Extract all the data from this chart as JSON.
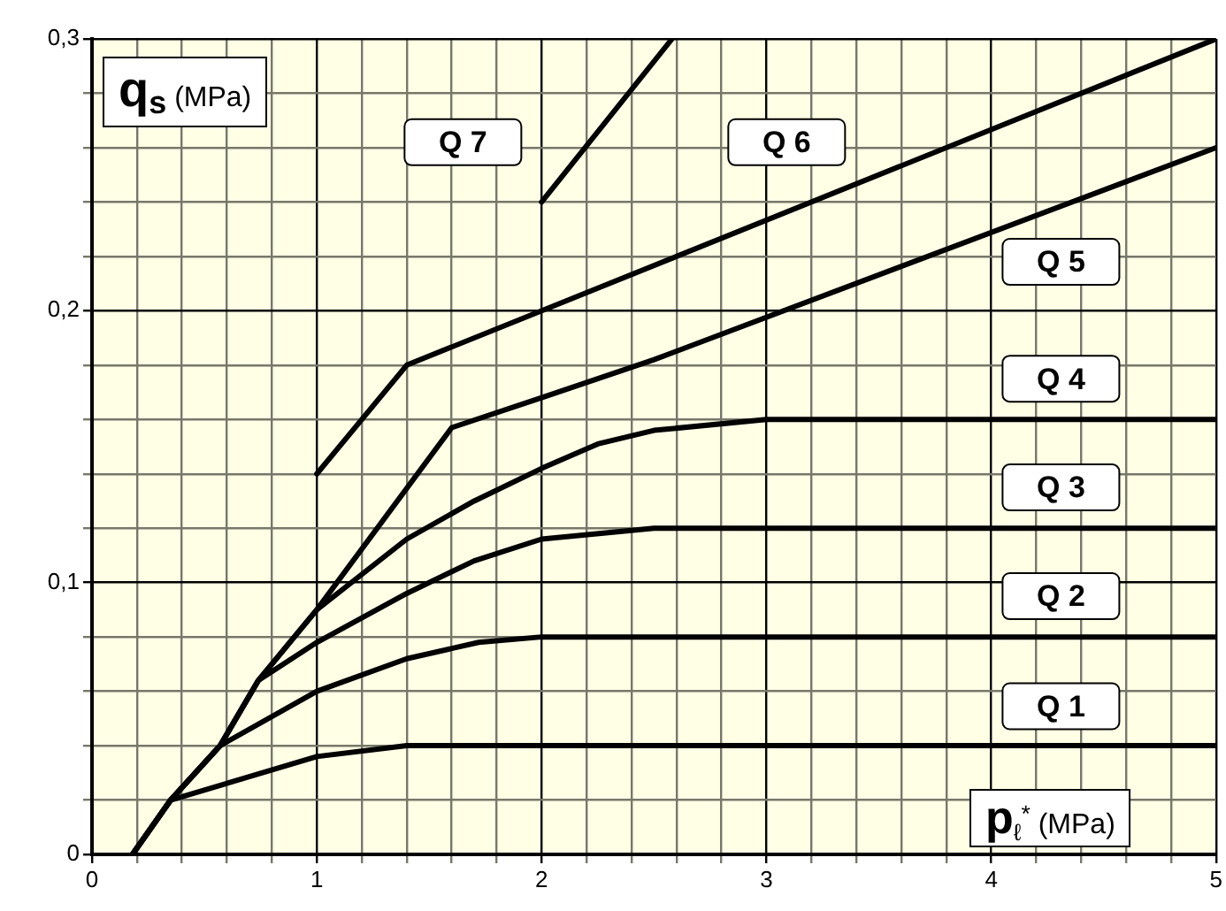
{
  "chart_data": {
    "type": "line",
    "xlabel": "p$_{ℓ}$$^{*}$ (MPa)",
    "ylabel": "q$_{s}$ (MPa)",
    "xlim": [
      0,
      5
    ],
    "ylim": [
      0,
      0.3
    ],
    "xticks": [
      0,
      {
        "value": 0.2,
        "label": null
      },
      {
        "value": 0.4,
        "label": null
      },
      {
        "value": 0.6,
        "label": null
      },
      {
        "value": 0.8,
        "label": null
      },
      1,
      {
        "value": 1.2,
        "label": null
      },
      {
        "value": 1.4,
        "label": null
      },
      {
        "value": 1.6,
        "label": null
      },
      {
        "value": 1.8,
        "label": null
      },
      2,
      {
        "value": 2.2,
        "label": null
      },
      {
        "value": 2.4,
        "label": null
      },
      {
        "value": 2.6,
        "label": null
      },
      {
        "value": 2.8,
        "label": null
      },
      3,
      {
        "value": 3.2,
        "label": null
      },
      {
        "value": 3.4,
        "label": null
      },
      {
        "value": 3.6,
        "label": null
      },
      {
        "value": 3.8,
        "label": null
      },
      4,
      {
        "value": 4.2,
        "label": null
      },
      {
        "value": 4.4,
        "label": null
      },
      {
        "value": 4.6,
        "label": null
      },
      {
        "value": 4.8,
        "label": null
      },
      5
    ],
    "yticks": [
      0,
      {
        "value": 0.02,
        "label": null
      },
      {
        "value": 0.04,
        "label": null
      },
      {
        "value": 0.06,
        "label": null
      },
      {
        "value": 0.08,
        "label": null
      },
      {
        "value": 0.1,
        "label": "0,1"
      },
      {
        "value": 0.12,
        "label": null
      },
      {
        "value": 0.14,
        "label": null
      },
      {
        "value": 0.16,
        "label": null
      },
      {
        "value": 0.18,
        "label": null
      },
      {
        "value": 0.2,
        "label": "0,2"
      },
      {
        "value": 0.22,
        "label": null
      },
      {
        "value": 0.24,
        "label": null
      },
      {
        "value": 0.26,
        "label": null
      },
      {
        "value": 0.28,
        "label": null
      },
      {
        "value": 0.3,
        "label": "0,3"
      }
    ],
    "grid": true,
    "legend": false,
    "marker": "none",
    "line_style": "solid",
    "series": [
      {
        "name": "Q 1",
        "color": "#000000",
        "x": [
          0.18,
          0.35,
          1.0,
          1.4,
          5
        ],
        "values": [
          0,
          0.02,
          0.036,
          0.04,
          0.04
        ]
      },
      {
        "name": "Q 2",
        "color": "#000000",
        "x": [
          0.18,
          0.35,
          0.57,
          1.0,
          1.4,
          1.72,
          2.0,
          5
        ],
        "values": [
          0,
          0.02,
          0.04,
          0.06,
          0.072,
          0.078,
          0.08,
          0.08
        ]
      },
      {
        "name": "Q 3",
        "color": "#000000",
        "x": [
          0.18,
          0.35,
          0.57,
          0.74,
          1.0,
          1.4,
          1.7,
          2.0,
          2.5,
          5
        ],
        "values": [
          0,
          0.02,
          0.04,
          0.064,
          0.078,
          0.096,
          0.108,
          0.116,
          0.12,
          0.12
        ]
      },
      {
        "name": "Q 4",
        "color": "#000000",
        "x": [
          0.18,
          0.35,
          0.57,
          0.74,
          1.0,
          1.4,
          1.7,
          2.0,
          2.25,
          2.5,
          3.0,
          5
        ],
        "values": [
          0,
          0.02,
          0.04,
          0.064,
          0.09,
          0.116,
          0.13,
          0.142,
          0.151,
          0.156,
          0.16,
          0.16
        ]
      },
      {
        "name": "Q 5",
        "color": "#000000",
        "x": [
          0.18,
          0.35,
          0.57,
          0.74,
          1.0,
          1.6,
          2.0,
          2.5,
          5
        ],
        "values": [
          0,
          0.02,
          0.04,
          0.064,
          0.09,
          0.157,
          0.168,
          0.182,
          0.26
        ]
      },
      {
        "name": "Q 6",
        "color": "#000000",
        "x": [
          1.0,
          1.4,
          5
        ],
        "values": [
          0.14,
          0.18,
          0.3
        ]
      },
      {
        "name": "Q 7",
        "color": "#000000",
        "x": [
          2.0,
          2.58
        ],
        "values": [
          0.24,
          0.3
        ]
      }
    ]
  }
}
